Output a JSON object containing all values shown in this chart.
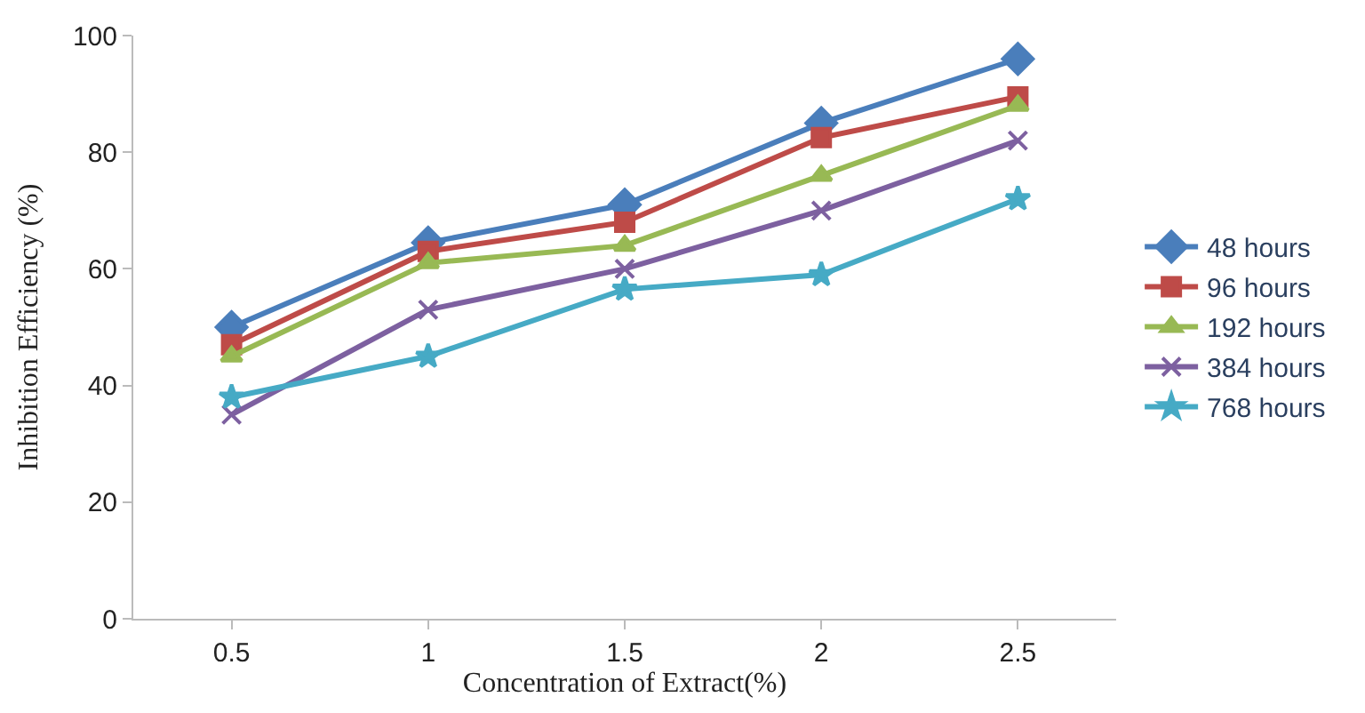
{
  "chart_data": {
    "type": "line",
    "xlabel": "Concentration of Extract(%)",
    "ylabel": "Inhibition Efficiency (%)",
    "categories": [
      "0.5",
      "1",
      "1.5",
      "2",
      "2.5"
    ],
    "series": [
      {
        "name": "48 hours",
        "color": "#4a7ebb",
        "marker": "diamond",
        "values": [
          50,
          64.5,
          71,
          85,
          96
        ]
      },
      {
        "name": "96 hours",
        "color": "#be4b48",
        "marker": "square",
        "values": [
          47,
          63,
          68,
          82.5,
          89.5
        ]
      },
      {
        "name": "192 hours",
        "color": "#98b954",
        "marker": "triangle",
        "values": [
          45,
          61,
          64,
          76,
          88
        ]
      },
      {
        "name": "384 hours",
        "color": "#7d60a0",
        "marker": "cross",
        "values": [
          35,
          53,
          60,
          70,
          82
        ]
      },
      {
        "name": "768 hours",
        "color": "#46aac5",
        "marker": "star",
        "values": [
          38,
          45,
          56.5,
          59,
          72
        ]
      }
    ],
    "ylim": [
      0,
      100
    ],
    "yticks": [
      0,
      20,
      40,
      60,
      80,
      100
    ],
    "legend": "right"
  }
}
